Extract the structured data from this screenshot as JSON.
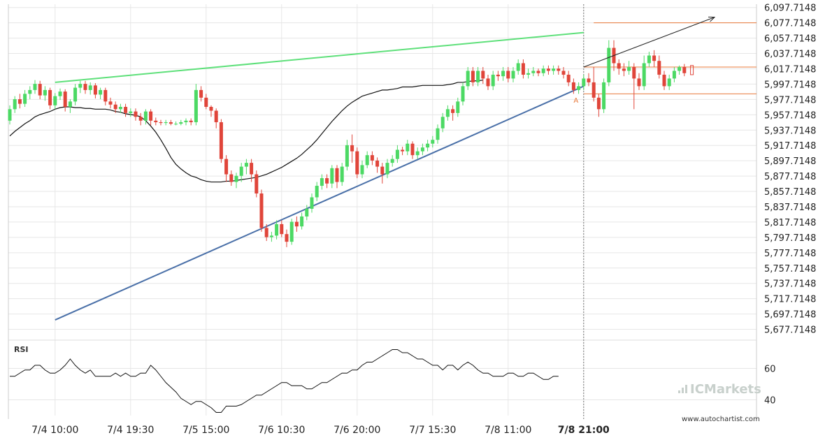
{
  "chart_data": [
    {
      "type": "candlestick",
      "y_ticks": [
        "6,097.7148",
        "6,077.7148",
        "6,057.7148",
        "6,037.7148",
        "6,017.7148",
        "5,997.7148",
        "5,977.7148",
        "5,957.7148",
        "5,937.7148",
        "5,917.7148",
        "5,897.7148",
        "5,877.7148",
        "5,857.7148",
        "5,837.7148",
        "5,817.7148",
        "5,797.7148",
        "5,777.7148",
        "5,757.7148",
        "5,737.7148",
        "5,717.7148",
        "5,697.7148",
        "5,677.7148"
      ],
      "ylim": [
        5670,
        6102
      ],
      "x_ticks": [
        "7/4 10:00",
        "7/4 19:30",
        "7/5 15:00",
        "7/6 10:30",
        "7/6 20:00",
        "7/7 15:30",
        "7/8 11:00",
        "7/8 21:00"
      ],
      "x_tick_index": [
        9,
        24,
        39,
        54,
        69,
        84,
        99,
        114
      ],
      "x_tick_current": "7/8 21:00",
      "grid": true,
      "colors": {
        "up": "#4cd964",
        "down": "#e0453a",
        "ma": "#111111",
        "support": "#4a70a8",
        "resistance": "#5ee07a",
        "level": "#e8793a",
        "grid": "#e6e6e6"
      },
      "candles": [
        [
          5950,
          5965,
          5945,
          5970
        ],
        [
          5965,
          5978,
          5960,
          5982
        ],
        [
          5978,
          5972,
          5966,
          5985
        ],
        [
          5972,
          5985,
          5968,
          5990
        ],
        [
          5985,
          5990,
          5978,
          5995
        ],
        [
          5990,
          5998,
          5985,
          6003
        ],
        [
          5998,
          5983,
          5978,
          6002
        ],
        [
          5983,
          5990,
          5976,
          5995
        ],
        [
          5990,
          5970,
          5965,
          5993
        ],
        [
          5970,
          5982,
          5965,
          5986
        ],
        [
          5982,
          5988,
          5977,
          5992
        ],
        [
          5988,
          5968,
          5962,
          5991
        ],
        [
          5968,
          5975,
          5960,
          5978
        ],
        [
          5975,
          5993,
          5970,
          5998
        ],
        [
          5993,
          5998,
          5986,
          6002
        ],
        [
          5998,
          5990,
          5985,
          6002
        ],
        [
          5990,
          5996,
          5984,
          6000
        ],
        [
          5996,
          5984,
          5979,
          5999
        ],
        [
          5984,
          5990,
          5978,
          5993
        ],
        [
          5990,
          5975,
          5970,
          5993
        ],
        [
          5975,
          5971,
          5966,
          5980
        ],
        [
          5971,
          5965,
          5960,
          5975
        ],
        [
          5965,
          5968,
          5960,
          5972
        ],
        [
          5968,
          5960,
          5955,
          5972
        ],
        [
          5960,
          5962,
          5955,
          5966
        ],
        [
          5962,
          5955,
          5950,
          5966
        ],
        [
          5955,
          5950,
          5944,
          5960
        ],
        [
          5950,
          5962,
          5945,
          5965
        ],
        [
          5962,
          5950,
          5944,
          5965
        ],
        [
          5950,
          5948,
          5944,
          5954
        ],
        [
          5948,
          5947,
          5944,
          5951
        ],
        [
          5947,
          5948,
          5944,
          5951
        ],
        [
          5948,
          5946,
          5944,
          5951
        ],
        [
          5946,
          5946,
          5944,
          5949
        ],
        [
          5946,
          5948,
          5944,
          5951
        ],
        [
          5948,
          5950,
          5944,
          5953
        ],
        [
          5950,
          5948,
          5944,
          5953
        ],
        [
          5948,
          5990,
          5944,
          5998
        ],
        [
          5990,
          5980,
          5975,
          5995
        ],
        [
          5980,
          5968,
          5965,
          5985
        ],
        [
          5968,
          5963,
          5955,
          5970
        ],
        [
          5963,
          5948,
          5940,
          5966
        ],
        [
          5948,
          5900,
          5895,
          5952
        ],
        [
          5900,
          5880,
          5870,
          5905
        ],
        [
          5880,
          5870,
          5865,
          5885
        ],
        [
          5870,
          5878,
          5862,
          5882
        ],
        [
          5878,
          5890,
          5870,
          5895
        ],
        [
          5890,
          5895,
          5880,
          5900
        ],
        [
          5895,
          5880,
          5870,
          5900
        ],
        [
          5880,
          5855,
          5850,
          5885
        ],
        [
          5855,
          5810,
          5805,
          5860
        ],
        [
          5810,
          5798,
          5793,
          5815
        ],
        [
          5798,
          5800,
          5792,
          5805
        ],
        [
          5800,
          5815,
          5795,
          5820
        ],
        [
          5815,
          5802,
          5798,
          5820
        ],
        [
          5802,
          5792,
          5785,
          5808
        ],
        [
          5792,
          5818,
          5788,
          5822
        ],
        [
          5818,
          5812,
          5805,
          5825
        ],
        [
          5812,
          5825,
          5808,
          5830
        ],
        [
          5825,
          5835,
          5820,
          5840
        ],
        [
          5835,
          5850,
          5830,
          5855
        ],
        [
          5850,
          5865,
          5845,
          5870
        ],
        [
          5865,
          5875,
          5860,
          5880
        ],
        [
          5875,
          5868,
          5862,
          5880
        ],
        [
          5868,
          5888,
          5862,
          5892
        ],
        [
          5888,
          5870,
          5862,
          5892
        ],
        [
          5870,
          5890,
          5865,
          5895
        ],
        [
          5890,
          5918,
          5885,
          5925
        ],
        [
          5918,
          5910,
          5895,
          5932
        ],
        [
          5910,
          5880,
          5875,
          5915
        ],
        [
          5880,
          5892,
          5875,
          5898
        ],
        [
          5892,
          5905,
          5888,
          5910
        ],
        [
          5905,
          5898,
          5892,
          5910
        ],
        [
          5898,
          5890,
          5882,
          5902
        ],
        [
          5890,
          5880,
          5868,
          5895
        ],
        [
          5880,
          5895,
          5875,
          5900
        ],
        [
          5895,
          5900,
          5890,
          5905
        ],
        [
          5900,
          5912,
          5895,
          5918
        ],
        [
          5912,
          5910,
          5905,
          5916
        ],
        [
          5910,
          5920,
          5905,
          5925
        ],
        [
          5920,
          5905,
          5900,
          5923
        ],
        [
          5905,
          5910,
          5900,
          5915
        ],
        [
          5910,
          5915,
          5905,
          5920
        ],
        [
          5915,
          5920,
          5910,
          5925
        ],
        [
          5920,
          5925,
          5915,
          5930
        ],
        [
          5925,
          5940,
          5920,
          5945
        ],
        [
          5940,
          5955,
          5935,
          5960
        ],
        [
          5955,
          5965,
          5950,
          5970
        ],
        [
          5965,
          5960,
          5950,
          5970
        ],
        [
          5960,
          5975,
          5955,
          5980
        ],
        [
          5975,
          5995,
          5970,
          6000
        ],
        [
          5995,
          6015,
          5990,
          6020
        ],
        [
          6015,
          6000,
          5995,
          6020
        ],
        [
          6000,
          6015,
          5995,
          6020
        ],
        [
          6015,
          6005,
          5998,
          6020
        ],
        [
          6005,
          5995,
          5990,
          6010
        ],
        [
          5995,
          6010,
          5990,
          6015
        ],
        [
          6010,
          6008,
          6002,
          6015
        ],
        [
          6008,
          6015,
          6002,
          6020
        ],
        [
          6015,
          6005,
          6000,
          6020
        ],
        [
          6005,
          6015,
          6000,
          6020
        ],
        [
          6015,
          6025,
          6010,
          6030
        ],
        [
          6025,
          6010,
          6005,
          6030
        ],
        [
          6010,
          6012,
          6005,
          6018
        ],
        [
          6012,
          6015,
          6008,
          6020
        ],
        [
          6015,
          6012,
          6008,
          6018
        ],
        [
          6012,
          6018,
          6008,
          6022
        ],
        [
          6018,
          6015,
          6010,
          6022
        ],
        [
          6015,
          6018,
          6010,
          6022
        ],
        [
          6018,
          6015,
          6010,
          6022
        ],
        [
          6015,
          6010,
          6005,
          6020
        ],
        [
          6010,
          6000,
          5995,
          6015
        ],
        [
          6000,
          5990,
          5985,
          6005
        ],
        [
          5990,
          5995,
          5985,
          6000
        ],
        [
          5995,
          6005,
          5990,
          6010
        ],
        [
          6005,
          6000,
          5995,
          6012
        ],
        [
          6000,
          5980,
          5975,
          6020
        ],
        [
          5980,
          5965,
          5955,
          5985
        ],
        [
          5965,
          6000,
          5960,
          6005
        ],
        [
          6000,
          6045,
          5995,
          6055
        ],
        [
          6045,
          6025,
          6015,
          6055
        ],
        [
          6025,
          6018,
          6010,
          6030
        ],
        [
          6018,
          6015,
          6008,
          6025
        ],
        [
          6015,
          6020,
          6010,
          6028
        ],
        [
          6020,
          6005,
          5965,
          6025
        ],
        [
          6005,
          5995,
          5990,
          6012
        ],
        [
          5995,
          6025,
          5990,
          6035
        ],
        [
          6025,
          6035,
          6020,
          6040
        ],
        [
          6035,
          6028,
          6020,
          6042
        ],
        [
          6028,
          6010,
          6005,
          6035
        ],
        [
          6010,
          5995,
          5990,
          6015
        ],
        [
          5995,
          6005,
          5990,
          6010
        ],
        [
          6005,
          6015,
          6000,
          6020
        ],
        [
          6015,
          6020,
          6010,
          6022
        ],
        [
          6020,
          6012,
          6008,
          6024
        ]
      ],
      "ma_start": 0,
      "ma": [
        5930,
        5936,
        5941,
        5946,
        5950,
        5955,
        5958,
        5960,
        5962,
        5965,
        5967,
        5968,
        5968,
        5967,
        5967,
        5966,
        5966,
        5965,
        5965,
        5965,
        5964,
        5962,
        5961,
        5959,
        5958,
        5957,
        5955,
        5950,
        5943,
        5935,
        5925,
        5914,
        5902,
        5893,
        5887,
        5882,
        5878,
        5876,
        5873,
        5871,
        5870,
        5870,
        5870,
        5871,
        5871,
        5872,
        5873,
        5874,
        5875,
        5876,
        5878,
        5880,
        5883,
        5886,
        5889,
        5893,
        5897,
        5901,
        5906,
        5912,
        5918,
        5925,
        5933,
        5941,
        5949,
        5956,
        5963,
        5969,
        5974,
        5978,
        5982,
        5984,
        5986,
        5988,
        5990,
        5990,
        5991,
        5992,
        5994,
        5994,
        5994,
        5995,
        5996,
        5996,
        5996,
        5996,
        5996,
        5997,
        5998,
        6000,
        6000,
        6001,
        6002,
        6002,
        6003
      ],
      "ma_x_start": 0,
      "support_line": {
        "x0": 9,
        "y0": 5690,
        "x1": 114,
        "y1": 5995
      },
      "resistance_line": {
        "x0": 9,
        "y0": 6000,
        "x1": 114,
        "y1": 6065
      },
      "levels": [
        6077.7148,
        6020,
        5985
      ],
      "forecast_arrow": {
        "x0": 114,
        "y0": 6020,
        "x1": 140,
        "y1": 6085
      },
      "point_label": "A",
      "rsi": {
        "label": "RSI",
        "y_ticks": [
          "60",
          "40"
        ],
        "ylim": [
          30,
          70
        ],
        "values": [
          55,
          55,
          57,
          59,
          59,
          62,
          62,
          59,
          57,
          57,
          59,
          62,
          66,
          62,
          59,
          57,
          59,
          55,
          55,
          55,
          55,
          57,
          55,
          57,
          55,
          55,
          57,
          57,
          62,
          59,
          55,
          51,
          48,
          45,
          41,
          39,
          37,
          39,
          39,
          37,
          35,
          32,
          32,
          36,
          36,
          36,
          37,
          39,
          41,
          43,
          43,
          45,
          47,
          49,
          51,
          51,
          49,
          49,
          49,
          47,
          47,
          49,
          51,
          51,
          53,
          55,
          57,
          57,
          59,
          59,
          62,
          64,
          64,
          66,
          68,
          70,
          72,
          72,
          70,
          70,
          68,
          66,
          66,
          64,
          62,
          62,
          59,
          62,
          62,
          59,
          62,
          64,
          62,
          59,
          57,
          57,
          55,
          55,
          55,
          57,
          57,
          55,
          55,
          57,
          57,
          55,
          53,
          53,
          55,
          55
        ],
        "rsi_x_start": 0
      }
    }
  ],
  "watermark": {
    "brand": "ICMarkets",
    "url": "www.autochartist.com"
  }
}
